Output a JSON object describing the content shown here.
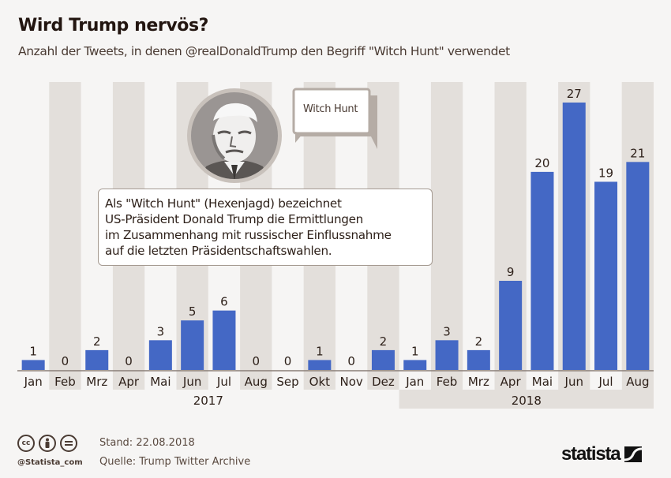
{
  "header": {
    "title": "Wird Trump nervös?",
    "subtitle": "Anzahl der Tweets, in denen @realDonaldTrump den Begriff \"Witch Hunt\" verwendet"
  },
  "illustration": {
    "portrait_icon": "trump-portrait-icon",
    "bubble_icon": "speech-bubble-icon",
    "bubble_text": "Witch Hunt"
  },
  "annotation": {
    "lines": [
      "Als \"Witch Hunt\" (Hexenjagd) bezeichnet",
      "US-Präsident Donald Trump die Ermittlungen",
      "im Zusammenhang mit russischer Einflussnahme",
      "auf die letzten Präsidentschaftswahlen."
    ]
  },
  "footer": {
    "license_icons": [
      "cc-icon",
      "by-icon",
      "nd-icon"
    ],
    "handle": "@Statista_com",
    "stand": "Stand: 22.08.2018",
    "source": "Quelle: Trump Twitter Archive",
    "logo_text": "statista"
  },
  "colors": {
    "bar": "#4468c5",
    "band": "#e3dfdb",
    "background": "#f6f5f4",
    "text": "#2e211a"
  },
  "chart_data": {
    "type": "bar",
    "title": "Wird Trump nervös?",
    "subtitle": "Anzahl der Tweets, in denen @realDonaldTrump den Begriff \"Witch Hunt\" verwendet",
    "xlabel": "",
    "ylabel": "",
    "ylim": [
      0,
      27
    ],
    "grid": false,
    "legend": "none",
    "categories": [
      "Jan",
      "Feb",
      "Mrz",
      "Apr",
      "Mai",
      "Jun",
      "Jul",
      "Aug",
      "Sep",
      "Okt",
      "Nov",
      "Dez",
      "Jan",
      "Feb",
      "Mrz",
      "Apr",
      "Mai",
      "Jun",
      "Jul",
      "Aug"
    ],
    "years": [
      {
        "label": "2017",
        "from": 0,
        "to": 11
      },
      {
        "label": "2018",
        "from": 12,
        "to": 19
      }
    ],
    "values": [
      1,
      0,
      2,
      0,
      3,
      5,
      6,
      0,
      0,
      1,
      0,
      2,
      1,
      3,
      2,
      9,
      20,
      27,
      19,
      21
    ]
  }
}
